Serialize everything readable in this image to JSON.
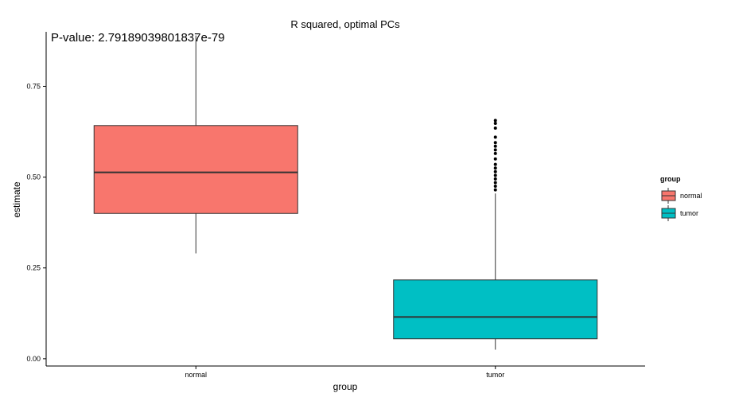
{
  "chart_data": {
    "type": "boxplot",
    "title": "R squared, optimal PCs",
    "annotation": "P-value: 2.79189039801837e-79",
    "xlabel": "group",
    "ylabel": "estimate",
    "ylim": [
      -0.02,
      0.9
    ],
    "yticks": [
      0.0,
      0.25,
      0.5,
      0.75
    ],
    "ytick_labels": [
      "0.00",
      "0.25",
      "0.50",
      "0.75"
    ],
    "categories": [
      "normal",
      "tumor"
    ],
    "boxes": [
      {
        "name": "normal",
        "color": "#F8766D",
        "whisker_low": 0.29,
        "q1": 0.4,
        "median": 0.513,
        "q3": 0.642,
        "whisker_high": 0.89,
        "outliers": []
      },
      {
        "name": "tumor",
        "color": "#00BFC4",
        "whisker_low": 0.025,
        "q1": 0.055,
        "median": 0.115,
        "q3": 0.217,
        "whisker_high": 0.455,
        "outliers": [
          0.465,
          0.475,
          0.485,
          0.495,
          0.505,
          0.515,
          0.525,
          0.535,
          0.55,
          0.565,
          0.575,
          0.585,
          0.595,
          0.61,
          0.635,
          0.648,
          0.656
        ]
      }
    ],
    "legend": {
      "title": "group",
      "placement": "right",
      "items": [
        {
          "label": "normal",
          "color": "#F8766D"
        },
        {
          "label": "tumor",
          "color": "#00BFC4"
        }
      ]
    },
    "grid": false
  }
}
